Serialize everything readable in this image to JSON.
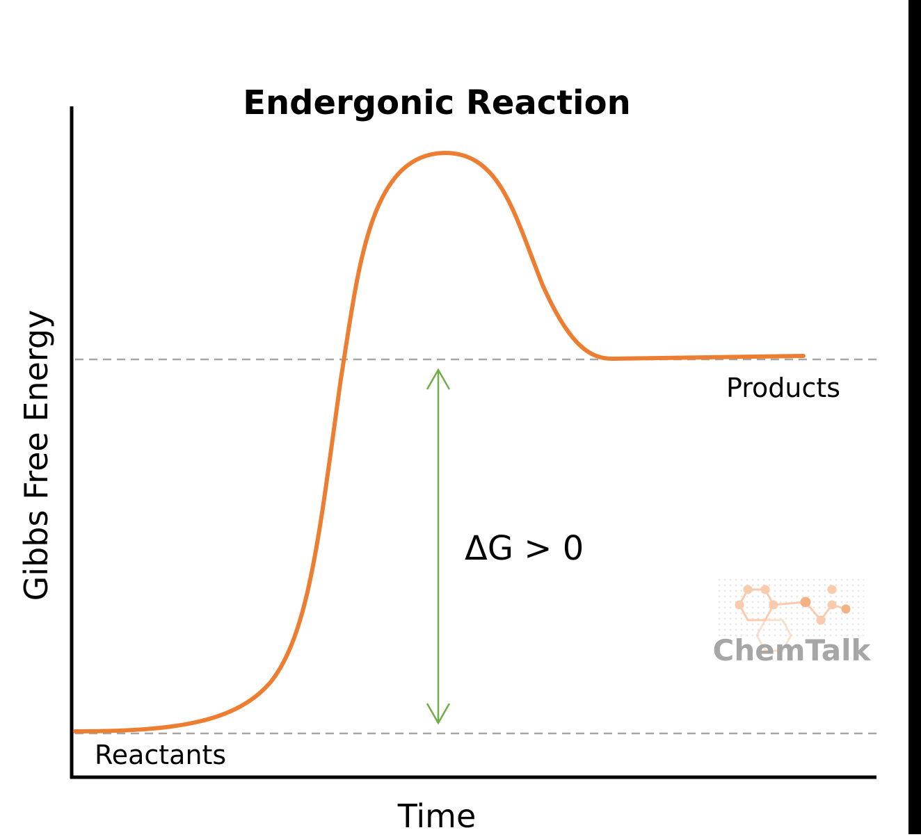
{
  "diagram": {
    "title": "Endergonic Reaction",
    "x_axis_label": "Time",
    "y_axis_label": "Gibbs Free Energy",
    "level_labels": {
      "reactants": "Reactants",
      "products": "Products"
    },
    "delta_label": "ΔG > 0",
    "watermark": "ChemTalk",
    "colors": {
      "curve": "#ed7d31",
      "arrow": "#70ad47",
      "dashed_line": "#a6a6a6",
      "axis": "#000000",
      "watermark_text": "#a6a6a6",
      "watermark_graphic": "#f8cbad",
      "right_edge": "#000000"
    }
  }
}
